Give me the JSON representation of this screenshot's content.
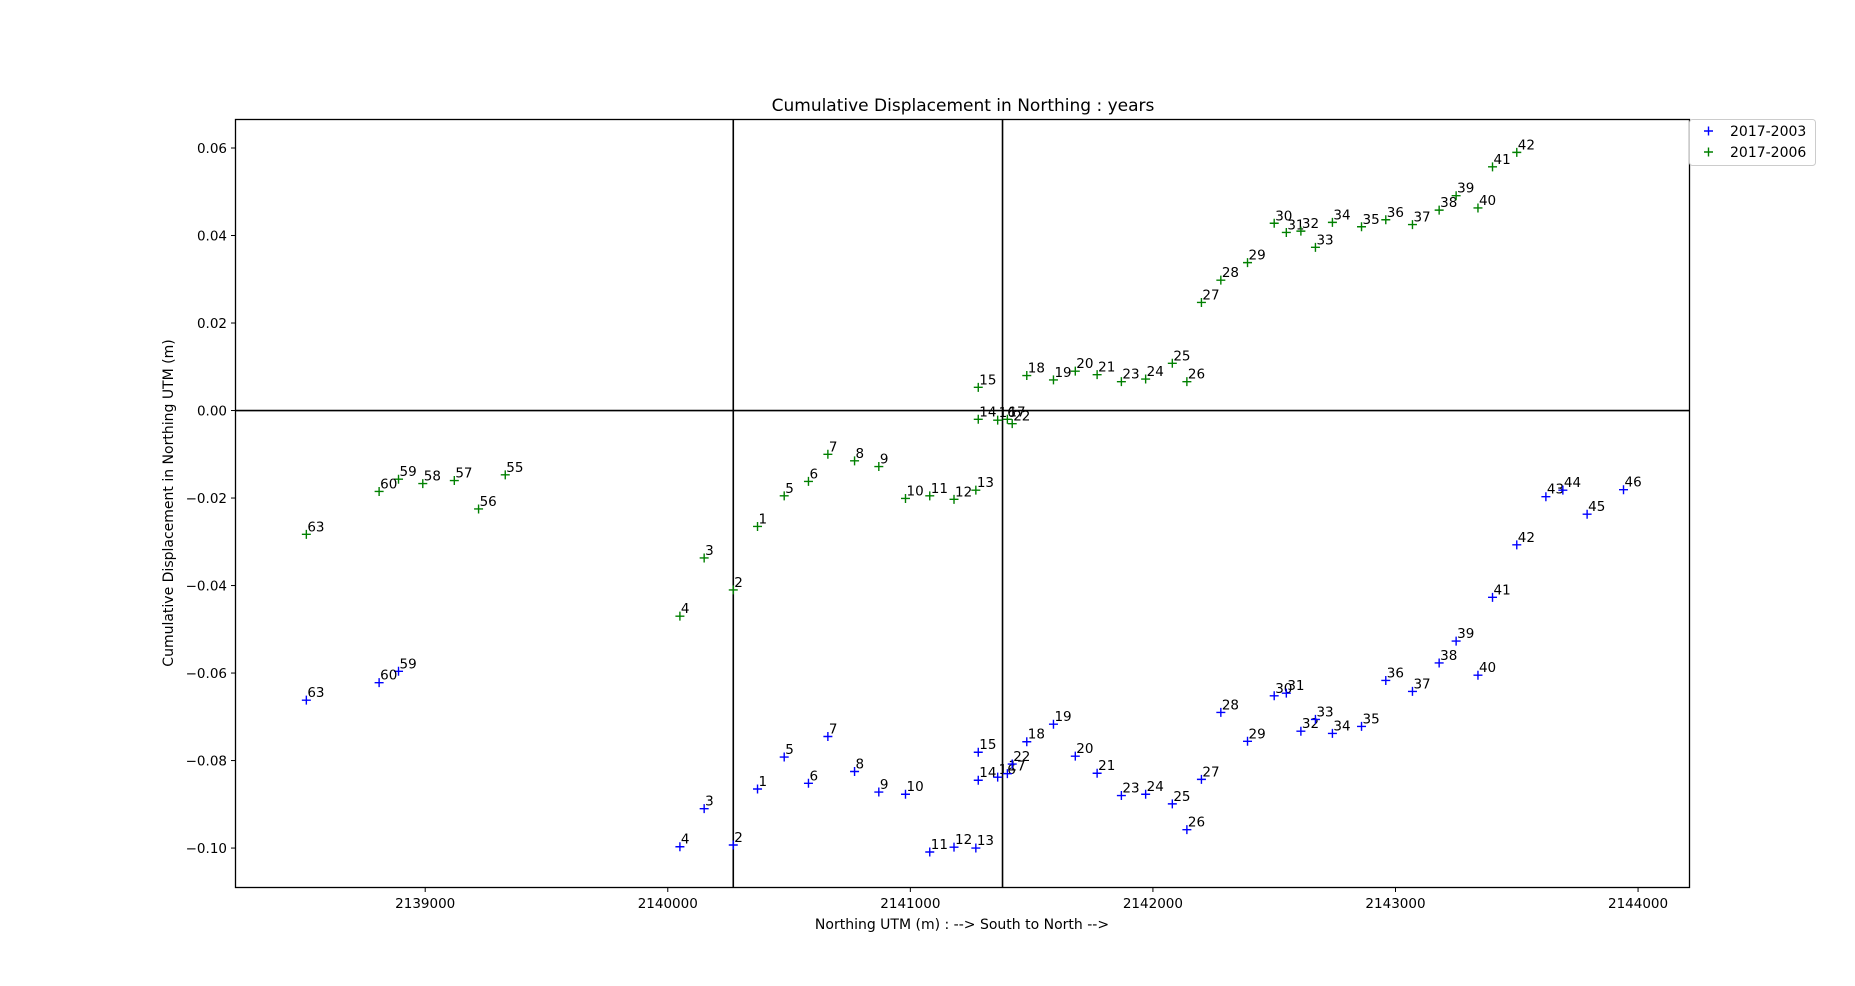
{
  "chart_data": {
    "type": "scatter",
    "title": "Cumulative Displacement in Northing : years",
    "xlabel": "Northing UTM (m) : --> South to North -->",
    "ylabel": "Cumulative Displacement in Northing UTM (m)",
    "xlim": [
      2138220,
      2144210
    ],
    "ylim": [
      -0.1089,
      0.0664
    ],
    "xticks": [
      2139000,
      2140000,
      2141000,
      2142000,
      2143000,
      2144000
    ],
    "xtick_labels": [
      "2139000",
      "2140000",
      "2141000",
      "2142000",
      "2143000",
      "2144000"
    ],
    "yticks": [
      0.06,
      0.04,
      0.02,
      0.0,
      -0.02,
      -0.04,
      -0.06,
      -0.08,
      -0.1
    ],
    "ytick_labels": [
      "0.06",
      "0.04",
      "0.02",
      "0.00",
      "−0.02",
      "−0.04",
      "−0.06",
      "−0.08",
      "−0.10"
    ],
    "reference_lines": {
      "horizontal_y": 0.0,
      "vertical_x": [
        2140270,
        2141380
      ]
    },
    "legend_position": "outside-top-right",
    "grid": false,
    "series": [
      {
        "name": "2017-2003",
        "color": "#0000ff",
        "marker": "+",
        "points": [
          {
            "id": "1",
            "x": 2140370,
            "y": -0.0865
          },
          {
            "id": "2",
            "x": 2140270,
            "y": -0.0993
          },
          {
            "id": "3",
            "x": 2140150,
            "y": -0.091
          },
          {
            "id": "4",
            "x": 2140050,
            "y": -0.0997
          },
          {
            "id": "5",
            "x": 2140480,
            "y": -0.0792
          },
          {
            "id": "6",
            "x": 2140580,
            "y": -0.0852
          },
          {
            "id": "7",
            "x": 2140660,
            "y": -0.0745
          },
          {
            "id": "8",
            "x": 2140770,
            "y": -0.0825
          },
          {
            "id": "9",
            "x": 2140870,
            "y": -0.0872
          },
          {
            "id": "10",
            "x": 2140980,
            "y": -0.0877
          },
          {
            "id": "11",
            "x": 2141080,
            "y": -0.1009
          },
          {
            "id": "12",
            "x": 2141180,
            "y": -0.0998
          },
          {
            "id": "13",
            "x": 2141270,
            "y": -0.1
          },
          {
            "id": "14",
            "x": 2141280,
            "y": -0.0845
          },
          {
            "id": "15",
            "x": 2141280,
            "y": -0.0781
          },
          {
            "id": "16",
            "x": 2141360,
            "y": -0.0838
          },
          {
            "id": "17",
            "x": 2141400,
            "y": -0.083
          },
          {
            "id": "18",
            "x": 2141480,
            "y": -0.0757
          },
          {
            "id": "19",
            "x": 2141590,
            "y": -0.0717
          },
          {
            "id": "20",
            "x": 2141680,
            "y": -0.079
          },
          {
            "id": "21",
            "x": 2141770,
            "y": -0.0829
          },
          {
            "id": "22",
            "x": 2141420,
            "y": -0.0808
          },
          {
            "id": "23",
            "x": 2141870,
            "y": -0.088
          },
          {
            "id": "24",
            "x": 2141970,
            "y": -0.0877
          },
          {
            "id": "25",
            "x": 2142080,
            "y": -0.0899
          },
          {
            "id": "26",
            "x": 2142140,
            "y": -0.0958
          },
          {
            "id": "27",
            "x": 2142200,
            "y": -0.0843
          },
          {
            "id": "28",
            "x": 2142280,
            "y": -0.069
          },
          {
            "id": "29",
            "x": 2142390,
            "y": -0.0756
          },
          {
            "id": "30",
            "x": 2142500,
            "y": -0.0652
          },
          {
            "id": "31",
            "x": 2142550,
            "y": -0.0646
          },
          {
            "id": "32",
            "x": 2142610,
            "y": -0.0733
          },
          {
            "id": "33",
            "x": 2142670,
            "y": -0.0706
          },
          {
            "id": "34",
            "x": 2142740,
            "y": -0.0738
          },
          {
            "id": "35",
            "x": 2142860,
            "y": -0.0722
          },
          {
            "id": "36",
            "x": 2142960,
            "y": -0.0617
          },
          {
            "id": "37",
            "x": 2143070,
            "y": -0.0642
          },
          {
            "id": "38",
            "x": 2143180,
            "y": -0.0577
          },
          {
            "id": "39",
            "x": 2143250,
            "y": -0.0527
          },
          {
            "id": "40",
            "x": 2143340,
            "y": -0.0605
          },
          {
            "id": "41",
            "x": 2143400,
            "y": -0.0427
          },
          {
            "id": "42",
            "x": 2143500,
            "y": -0.0307
          },
          {
            "id": "43",
            "x": 2143620,
            "y": -0.0197
          },
          {
            "id": "44",
            "x": 2143690,
            "y": -0.0182
          },
          {
            "id": "45",
            "x": 2143790,
            "y": -0.0237
          },
          {
            "id": "46",
            "x": 2143940,
            "y": -0.0181
          },
          {
            "id": "59",
            "x": 2138890,
            "y": -0.0596
          },
          {
            "id": "60",
            "x": 2138810,
            "y": -0.0622
          },
          {
            "id": "63",
            "x": 2138510,
            "y": -0.0662
          }
        ]
      },
      {
        "name": "2017-2006",
        "color": "#008000",
        "marker": "+",
        "points": [
          {
            "id": "1",
            "x": 2140370,
            "y": -0.0265
          },
          {
            "id": "2",
            "x": 2140270,
            "y": -0.041
          },
          {
            "id": "3",
            "x": 2140150,
            "y": -0.0337
          },
          {
            "id": "4",
            "x": 2140050,
            "y": -0.047
          },
          {
            "id": "5",
            "x": 2140480,
            "y": -0.0195
          },
          {
            "id": "6",
            "x": 2140580,
            "y": -0.0162
          },
          {
            "id": "7",
            "x": 2140660,
            "y": -0.01
          },
          {
            "id": "8",
            "x": 2140770,
            "y": -0.0115
          },
          {
            "id": "9",
            "x": 2140870,
            "y": -0.0128
          },
          {
            "id": "10",
            "x": 2140980,
            "y": -0.0201
          },
          {
            "id": "11",
            "x": 2141080,
            "y": -0.0195
          },
          {
            "id": "12",
            "x": 2141180,
            "y": -0.0203
          },
          {
            "id": "13",
            "x": 2141270,
            "y": -0.0182
          },
          {
            "id": "14",
            "x": 2141280,
            "y": -0.002
          },
          {
            "id": "15",
            "x": 2141280,
            "y": 0.0053
          },
          {
            "id": "16",
            "x": 2141360,
            "y": -0.0022
          },
          {
            "id": "17",
            "x": 2141400,
            "y": -0.002
          },
          {
            "id": "18",
            "x": 2141480,
            "y": 0.008
          },
          {
            "id": "19",
            "x": 2141590,
            "y": 0.007
          },
          {
            "id": "20",
            "x": 2141680,
            "y": 0.009
          },
          {
            "id": "21",
            "x": 2141770,
            "y": 0.0082
          },
          {
            "id": "22",
            "x": 2141420,
            "y": -0.003
          },
          {
            "id": "23",
            "x": 2141870,
            "y": 0.0066
          },
          {
            "id": "24",
            "x": 2141970,
            "y": 0.0072
          },
          {
            "id": "25",
            "x": 2142080,
            "y": 0.0108
          },
          {
            "id": "26",
            "x": 2142140,
            "y": 0.0066
          },
          {
            "id": "27",
            "x": 2142200,
            "y": 0.0247
          },
          {
            "id": "28",
            "x": 2142280,
            "y": 0.0298
          },
          {
            "id": "29",
            "x": 2142390,
            "y": 0.0338
          },
          {
            "id": "30",
            "x": 2142500,
            "y": 0.0428
          },
          {
            "id": "31",
            "x": 2142550,
            "y": 0.0407
          },
          {
            "id": "32",
            "x": 2142610,
            "y": 0.041
          },
          {
            "id": "33",
            "x": 2142670,
            "y": 0.0373
          },
          {
            "id": "34",
            "x": 2142740,
            "y": 0.043
          },
          {
            "id": "35",
            "x": 2142860,
            "y": 0.042
          },
          {
            "id": "36",
            "x": 2142960,
            "y": 0.0436
          },
          {
            "id": "37",
            "x": 2143070,
            "y": 0.0425
          },
          {
            "id": "38",
            "x": 2143180,
            "y": 0.0458
          },
          {
            "id": "39",
            "x": 2143250,
            "y": 0.0491
          },
          {
            "id": "40",
            "x": 2143340,
            "y": 0.0463
          },
          {
            "id": "41",
            "x": 2143400,
            "y": 0.0557
          },
          {
            "id": "42",
            "x": 2143500,
            "y": 0.059
          },
          {
            "id": "55",
            "x": 2139330,
            "y": -0.0147
          },
          {
            "id": "56",
            "x": 2139220,
            "y": -0.0225
          },
          {
            "id": "57",
            "x": 2139120,
            "y": -0.016
          },
          {
            "id": "58",
            "x": 2138990,
            "y": -0.0167
          },
          {
            "id": "59",
            "x": 2138890,
            "y": -0.0157
          },
          {
            "id": "60",
            "x": 2138810,
            "y": -0.0185
          },
          {
            "id": "63",
            "x": 2138510,
            "y": -0.0283
          }
        ]
      }
    ]
  }
}
